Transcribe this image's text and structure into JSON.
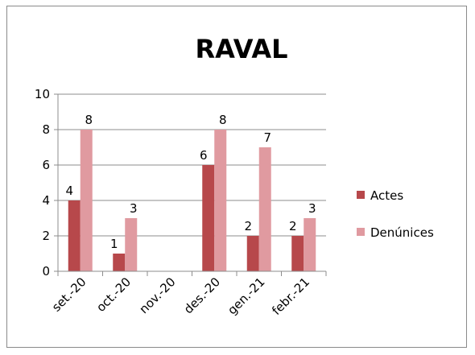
{
  "chart_data": {
    "type": "bar",
    "title": "RAVAL",
    "categories": [
      "set.-20",
      "oct.-20",
      "nov.-20",
      "des.-20",
      "gen.-21",
      "febr.-21"
    ],
    "series": [
      {
        "name": "Actes",
        "values": [
          4,
          1,
          null,
          6,
          2,
          2
        ],
        "color": "#b7484b"
      },
      {
        "name": "Denúnices",
        "values": [
          8,
          3,
          null,
          8,
          7,
          3
        ],
        "color": "#e09aa0"
      }
    ],
    "ylim": [
      0,
      10
    ],
    "yticks": [
      0,
      2,
      4,
      6,
      8,
      10
    ],
    "grid": true,
    "legend_position": "right"
  }
}
